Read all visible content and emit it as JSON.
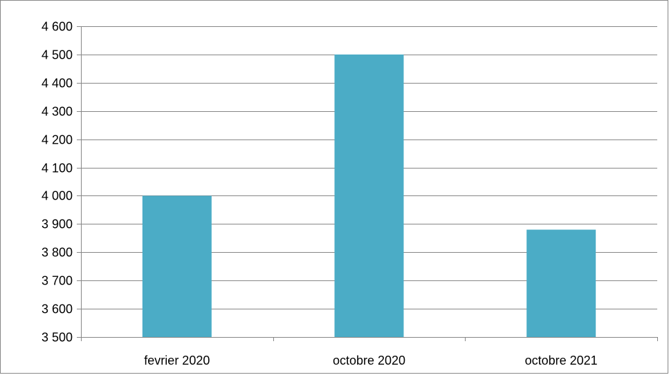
{
  "chart_data": {
    "type": "bar",
    "categories": [
      "fevrier 2020",
      "octobre 2020",
      "octobre 2021"
    ],
    "series": [
      {
        "values": [
          4000,
          4500,
          3880
        ]
      }
    ],
    "ylim": [
      3500,
      4600
    ],
    "yticks": [
      3500,
      3600,
      3700,
      3800,
      3900,
      4000,
      4100,
      4200,
      4300,
      4400,
      4500,
      4600
    ],
    "ytick_labels": [
      "3 500",
      "3 600",
      "3 700",
      "3 800",
      "3 900",
      "4 000",
      "4 100",
      "4 200",
      "4 300",
      "4 400",
      "4 500",
      "4 600"
    ],
    "grid": true,
    "legend": "none",
    "colors": {
      "bar": "#4BACC6",
      "grid": "#868686",
      "axis": "#868686",
      "text": "#000000"
    }
  }
}
